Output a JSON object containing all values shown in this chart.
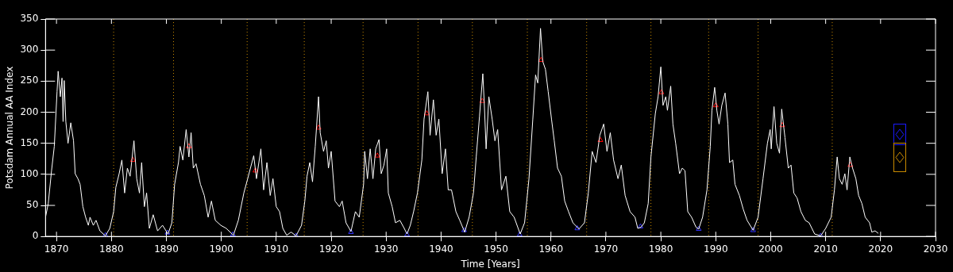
{
  "chart_data": {
    "type": "line",
    "xlabel": "Time [Years]",
    "ylabel": "Potsdam Annual AA Index",
    "xlim": [
      1868,
      2030
    ],
    "xticks": [
      1870,
      1880,
      1890,
      1900,
      1910,
      1920,
      1930,
      1940,
      1950,
      1960,
      1970,
      1980,
      1990,
      2000,
      2010,
      2020,
      2030
    ],
    "ylim": [
      0,
      350
    ],
    "yticks": [
      0,
      50,
      100,
      150,
      200,
      250,
      300,
      350
    ],
    "grid": false,
    "legend": false,
    "series": [
      {
        "color": "#ffffff",
        "marker": "none",
        "x": [
          1868.0,
          1868.5,
          1869.1,
          1869.6,
          1870.1,
          1870.3,
          1870.7,
          1871.0,
          1871.2,
          1871.4,
          1871.7,
          1872.1,
          1872.6,
          1873.1,
          1873.4,
          1873.9,
          1874.3,
          1874.8,
          1875.3,
          1875.8,
          1876.1,
          1876.7,
          1877.2,
          1877.9,
          1878.9,
          1879.7,
          1880.4,
          1880.8,
          1881.4,
          1881.9,
          1882.4,
          1882.9,
          1883.4,
          1884.1,
          1884.6,
          1885.1,
          1885.5,
          1886.0,
          1886.4,
          1886.9,
          1887.6,
          1888.4,
          1889.3,
          1890.3,
          1891.0,
          1891.5,
          1892.2,
          1892.5,
          1893.0,
          1893.6,
          1894.1,
          1894.5,
          1894.9,
          1895.4,
          1896.2,
          1896.9,
          1897.6,
          1898.2,
          1898.9,
          1899.9,
          1900.9,
          1902.2,
          1903.1,
          1904.1,
          1904.8,
          1905.3,
          1905.9,
          1906.4,
          1907.2,
          1907.7,
          1908.3,
          1908.9,
          1909.4,
          1910.0,
          1910.6,
          1911.2,
          1911.9,
          1912.7,
          1913.6,
          1914.6,
          1915.2,
          1915.6,
          1916.1,
          1916.6,
          1917.1,
          1917.7,
          1918.0,
          1918.6,
          1919.1,
          1919.5,
          1920.0,
          1920.7,
          1921.5,
          1922.0,
          1922.7,
          1923.6,
          1924.4,
          1925.1,
          1925.9,
          1926.1,
          1926.6,
          1927.1,
          1927.6,
          1928.1,
          1928.7,
          1929.1,
          1929.6,
          1930.1,
          1930.4,
          1931.1,
          1931.7,
          1932.5,
          1933.3,
          1933.8,
          1934.4,
          1935.0,
          1935.7,
          1936.5,
          1936.9,
          1937.6,
          1938.0,
          1938.6,
          1939.1,
          1939.6,
          1940.2,
          1940.8,
          1941.3,
          1941.9,
          1942.7,
          1943.4,
          1944.3,
          1945.1,
          1945.9,
          1946.4,
          1947.0,
          1947.6,
          1947.9,
          1948.2,
          1948.7,
          1949.3,
          1949.8,
          1950.3,
          1951.0,
          1951.8,
          1952.5,
          1953.3,
          1954.4,
          1955.2,
          1956.0,
          1956.7,
          1957.2,
          1957.6,
          1958.1,
          1958.5,
          1959.0,
          1959.5,
          1960.1,
          1960.6,
          1961.2,
          1961.9,
          1962.5,
          1963.2,
          1964.0,
          1965.1,
          1966.1,
          1966.8,
          1967.5,
          1968.2,
          1968.9,
          1969.6,
          1970.2,
          1970.8,
          1971.4,
          1972.2,
          1972.8,
          1973.5,
          1974.4,
          1975.3,
          1975.8,
          1976.4,
          1977.0,
          1977.7,
          1978.2,
          1979.0,
          1979.5,
          1980.0,
          1980.4,
          1980.9,
          1981.2,
          1981.8,
          1982.2,
          1982.7,
          1983.4,
          1983.9,
          1984.4,
          1984.9,
          1985.6,
          1986.4,
          1986.9,
          1987.6,
          1988.4,
          1989.0,
          1989.3,
          1989.8,
          1990.2,
          1990.6,
          1991.1,
          1991.7,
          1992.2,
          1992.5,
          1993.1,
          1993.5,
          1994.3,
          1995.0,
          1995.7,
          1996.8,
          1997.7,
          1998.6,
          1999.4,
          1999.9,
          2000.1,
          2000.6,
          2001.1,
          2001.6,
          2002.0,
          2002.6,
          2003.2,
          2003.7,
          2004.2,
          2004.8,
          2005.5,
          2006.3,
          2007.0,
          2008.0,
          2009.1,
          2010.0,
          2011.0,
          2011.6,
          2012.1,
          2012.5,
          2013.0,
          2013.5,
          2013.9,
          2014.4,
          2014.9,
          2015.5,
          2016.0,
          2016.6,
          2017.2,
          2018.0,
          2018.4,
          2019.0,
          2019.6
        ],
        "values": [
          31,
          53,
          106,
          145,
          233,
          266,
          225,
          255,
          185,
          251,
          185,
          150,
          183,
          154,
          101,
          93,
          84,
          48,
          31,
          18,
          31,
          18,
          26,
          9,
          1,
          13,
          40,
          79,
          101,
          123,
          70,
          110,
          97,
          154,
          93,
          70,
          119,
          48,
          70,
          13,
          35,
          9,
          18,
          4,
          22,
          84,
          119,
          145,
          123,
          172,
          128,
          167,
          110,
          117,
          84,
          66,
          31,
          57,
          26,
          18,
          13,
          2,
          26,
          70,
          93,
          110,
          130,
          93,
          141,
          75,
          119,
          66,
          93,
          48,
          40,
          13,
          2,
          7,
          1,
          18,
          57,
          97,
          119,
          88,
          145,
          225,
          167,
          137,
          154,
          110,
          137,
          57,
          48,
          57,
          22,
          8,
          40,
          31,
          84,
          137,
          93,
          141,
          93,
          141,
          156,
          101,
          115,
          141,
          70,
          48,
          22,
          26,
          13,
          4,
          18,
          40,
          70,
          123,
          189,
          233,
          163,
          220,
          163,
          189,
          101,
          141,
          75,
          75,
          40,
          26,
          7,
          31,
          70,
          128,
          194,
          262,
          207,
          141,
          225,
          189,
          154,
          172,
          75,
          97,
          40,
          31,
          4,
          22,
          93,
          189,
          260,
          247,
          335,
          282,
          269,
          233,
          189,
          154,
          110,
          97,
          57,
          40,
          22,
          12,
          22,
          70,
          137,
          119,
          163,
          181,
          137,
          167,
          123,
          93,
          115,
          66,
          40,
          31,
          13,
          15,
          22,
          53,
          128,
          198,
          225,
          273,
          211,
          225,
          203,
          242,
          181,
          150,
          101,
          110,
          106,
          40,
          31,
          15,
          12,
          31,
          75,
          145,
          203,
          240,
          203,
          181,
          211,
          231,
          181,
          119,
          123,
          84,
          66,
          44,
          26,
          10,
          31,
          93,
          150,
          172,
          141,
          209,
          150,
          134,
          205,
          159,
          110,
          115,
          70,
          62,
          40,
          26,
          22,
          4,
          1,
          13,
          31,
          75,
          128,
          93,
          84,
          101,
          75,
          128,
          110,
          93,
          66,
          53,
          31,
          22,
          7,
          9,
          5
        ]
      },
      {
        "type": "scatter",
        "color": "#ff0000",
        "marker": "triangle",
        "x": [
          1883.9,
          1894.1,
          1906.2,
          1917.7,
          1928.4,
          1937.4,
          1947.5,
          1958.2,
          1969.0,
          1980.1,
          1990.0,
          2002.1,
          2014.5
        ],
        "values": [
          123,
          145,
          106,
          175,
          130,
          198,
          218,
          284,
          155,
          232,
          211,
          179,
          115
        ]
      },
      {
        "type": "scatter",
        "color": "#3333ff",
        "marker": "triangle",
        "x": [
          1878.9,
          1890.2,
          1902.1,
          1913.6,
          1923.6,
          1933.8,
          1944.2,
          1954.3,
          1964.8,
          1976.3,
          1986.9,
          1996.8,
          2009.1
        ],
        "values": [
          2,
          6,
          3,
          1,
          7,
          3,
          10,
          3,
          13,
          16,
          12,
          10,
          1
        ]
      }
    ],
    "ref_lines": [
      {
        "axis": "x",
        "value": 1880.4,
        "color": "#c88a00",
        "line_style": "dotted"
      },
      {
        "axis": "x",
        "value": 1891.3,
        "color": "#c88a00",
        "line_style": "dotted"
      },
      {
        "axis": "x",
        "value": 1904.7,
        "color": "#c88a00",
        "line_style": "dotted"
      },
      {
        "axis": "x",
        "value": 1915.1,
        "color": "#c88a00",
        "line_style": "dotted"
      },
      {
        "axis": "x",
        "value": 1925.8,
        "color": "#c88a00",
        "line_style": "dotted"
      },
      {
        "axis": "x",
        "value": 1935.8,
        "color": "#c88a00",
        "line_style": "dotted"
      },
      {
        "axis": "x",
        "value": 1945.7,
        "color": "#c88a00",
        "line_style": "dotted"
      },
      {
        "axis": "x",
        "value": 1955.7,
        "color": "#c88a00",
        "line_style": "dotted"
      },
      {
        "axis": "x",
        "value": 1966.5,
        "color": "#c88a00",
        "line_style": "dotted"
      },
      {
        "axis": "x",
        "value": 1978.2,
        "color": "#c88a00",
        "line_style": "dotted"
      },
      {
        "axis": "x",
        "value": 1988.7,
        "color": "#c88a00",
        "line_style": "dotted"
      },
      {
        "axis": "x",
        "value": 1997.7,
        "color": "#c88a00",
        "line_style": "dotted"
      },
      {
        "axis": "x",
        "value": 2011.2,
        "color": "#c88a00",
        "line_style": "dotted"
      }
    ]
  }
}
